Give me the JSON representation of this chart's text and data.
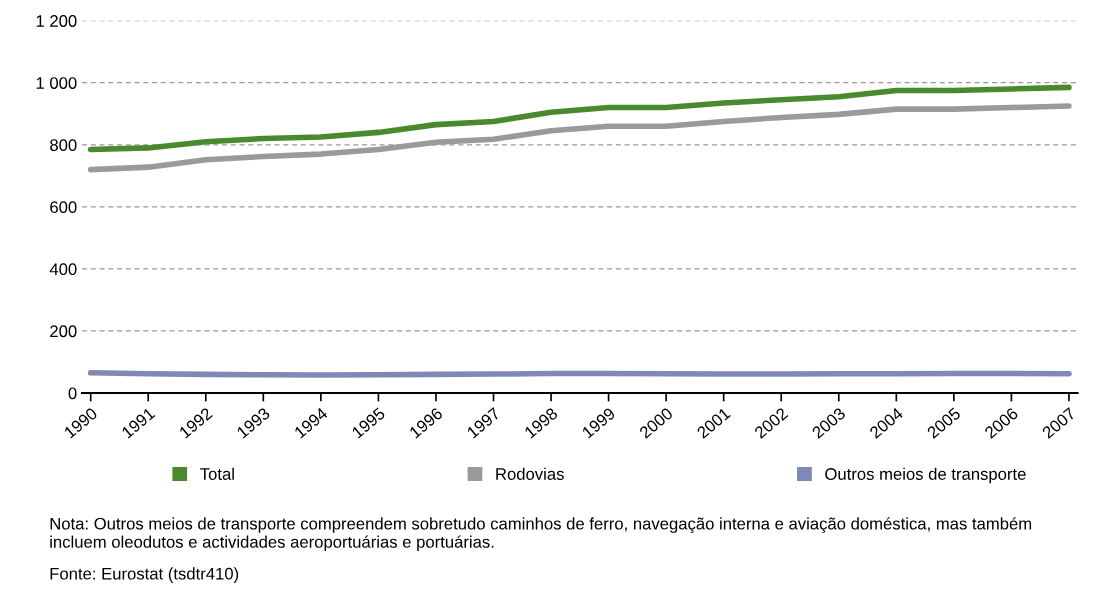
{
  "chart_data": {
    "type": "line",
    "categories": [
      "1990",
      "1991",
      "1992",
      "1993",
      "1994",
      "1995",
      "1996",
      "1997",
      "1998",
      "1999",
      "2000",
      "2001",
      "2002",
      "2003",
      "2004",
      "2005",
      "2006",
      "2007"
    ],
    "series": [
      {
        "name": "Total",
        "color": "#4a8a2e",
        "values": [
          785,
          790,
          810,
          820,
          825,
          840,
          865,
          875,
          905,
          920,
          920,
          935,
          945,
          955,
          975,
          975,
          980,
          985
        ]
      },
      {
        "name": "Rodovias",
        "color": "#9a9a9a",
        "values": [
          720,
          728,
          752,
          762,
          770,
          785,
          808,
          818,
          845,
          860,
          860,
          875,
          888,
          898,
          915,
          915,
          920,
          925
        ]
      },
      {
        "name": "Outros meios de transporte",
        "color": "#8088b8",
        "values": [
          65,
          62,
          60,
          59,
          58,
          59,
          60,
          61,
          63,
          63,
          62,
          61,
          61,
          62,
          62,
          63,
          63,
          62
        ]
      }
    ],
    "ylim": [
      0,
      1200
    ],
    "yticks": [
      0,
      200,
      400,
      600,
      800,
      {
        "value": 1000,
        "label": "1 000"
      },
      {
        "value": 1200,
        "label": "1 200"
      }
    ],
    "grid": "y",
    "legend": "bottom",
    "line_style": "solid",
    "marker": "none",
    "annotations": [
      "Nota: Outros meios de transporte compreendem sobretudo caminhos de ferro, navegação interna e aviação doméstica, mas também incluem oleodutos e actividades aeroportuárias e portuárias.",
      "Fonte: Eurostat (tsdtr410)"
    ]
  }
}
